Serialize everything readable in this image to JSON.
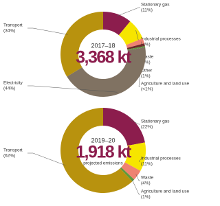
{
  "chart_data": [
    {
      "type": "pie",
      "title": "2017–18",
      "subtitle": "3,368 kt",
      "categories": [
        "Stationary gas",
        "Industrial processes",
        "Waste",
        "Other",
        "Agriculture and land use",
        "Electricity",
        "Transport"
      ],
      "values": [
        11,
        8,
        2,
        1,
        0.5,
        44,
        34
      ],
      "value_labels": [
        "(11%)",
        "(8%)",
        "(2%)",
        "(1%)",
        "(<1%)",
        "(44%)",
        "(34%)"
      ],
      "colors": [
        "#8c1d4d",
        "#f6e500",
        "#ef8272",
        "#6e2a2a",
        "#5e9a3c",
        "#807262",
        "#b8920e"
      ]
    },
    {
      "type": "pie",
      "title": "2019–20",
      "subtitle": "1,918 kt",
      "note": "projected emissions",
      "categories": [
        "Stationary gas",
        "Industrial processes",
        "Waste",
        "Agriculture and land use",
        "Transport"
      ],
      "values": [
        22,
        11,
        4,
        1,
        62
      ],
      "value_labels": [
        "(22%)",
        "(11%)",
        "(4%)",
        "(1%)",
        "(62%)"
      ],
      "colors": [
        "#8c1d4d",
        "#f6e500",
        "#ef8272",
        "#5e9a3c",
        "#b8920e"
      ]
    }
  ]
}
